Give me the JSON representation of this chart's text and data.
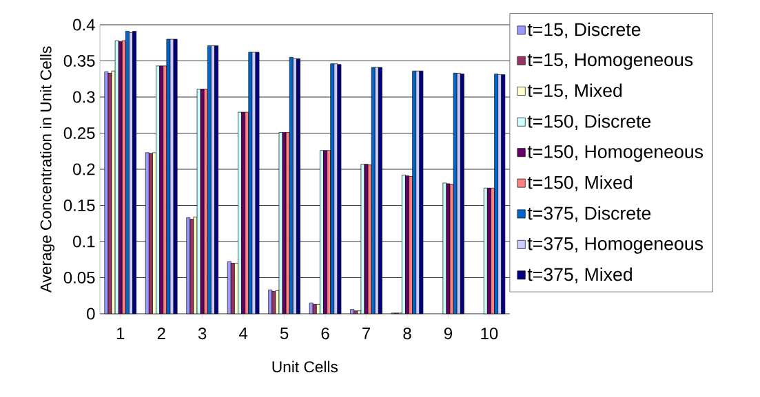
{
  "chart_data": {
    "type": "bar",
    "xlabel": "Unit Cells",
    "ylabel": "Average Concentration in Unit Cells",
    "categories": [
      "1",
      "2",
      "3",
      "4",
      "5",
      "6",
      "7",
      "8",
      "9",
      "10"
    ],
    "series": [
      {
        "name": "t=15, Discrete",
        "color": "#9999ff",
        "values": [
          0.335,
          0.223,
          0.133,
          0.072,
          0.033,
          0.015,
          0.006,
          0.001,
          null,
          null
        ]
      },
      {
        "name": "t=15, Homogeneous",
        "color": "#993366",
        "values": [
          0.333,
          0.222,
          0.131,
          0.07,
          0.031,
          0.013,
          0.004,
          0.001,
          null,
          null
        ]
      },
      {
        "name": "t=15, Mixed",
        "color": "#ffffcc",
        "values": [
          0.336,
          0.223,
          0.134,
          0.07,
          0.032,
          0.013,
          0.004,
          0.001,
          null,
          null
        ]
      },
      {
        "name": "t=150, Discrete",
        "color": "#ccffff",
        "values": [
          0.378,
          0.343,
          0.311,
          0.279,
          0.251,
          0.226,
          0.207,
          0.192,
          0.181,
          0.174
        ]
      },
      {
        "name": "t=150, Homogeneous",
        "color": "#660066",
        "values": [
          0.377,
          0.343,
          0.311,
          0.279,
          0.251,
          0.226,
          0.207,
          0.191,
          0.18,
          0.174
        ]
      },
      {
        "name": "t=150, Mixed",
        "color": "#ff8080",
        "values": [
          0.378,
          0.343,
          0.311,
          0.279,
          0.251,
          0.226,
          0.206,
          0.19,
          0.179,
          0.174
        ]
      },
      {
        "name": "t=375, Discrete",
        "color": "#0066cc",
        "values": [
          0.391,
          0.38,
          0.371,
          0.362,
          0.355,
          0.346,
          0.341,
          0.336,
          0.333,
          0.332
        ]
      },
      {
        "name": "t=375, Homogeneous",
        "color": "#ccccff",
        "values": [
          0.389,
          0.38,
          0.371,
          0.362,
          0.353,
          0.346,
          0.341,
          0.336,
          0.333,
          0.331
        ]
      },
      {
        "name": "t=375, Mixed",
        "color": "#000080",
        "values": [
          0.391,
          0.38,
          0.371,
          0.362,
          0.353,
          0.345,
          0.341,
          0.336,
          0.332,
          0.331
        ]
      }
    ],
    "ylim": [
      0,
      0.4
    ],
    "yticks": [
      0,
      0.05,
      0.1,
      0.15,
      0.2,
      0.25,
      0.3,
      0.35,
      0.4
    ],
    "grid": "y",
    "legend": "right"
  }
}
